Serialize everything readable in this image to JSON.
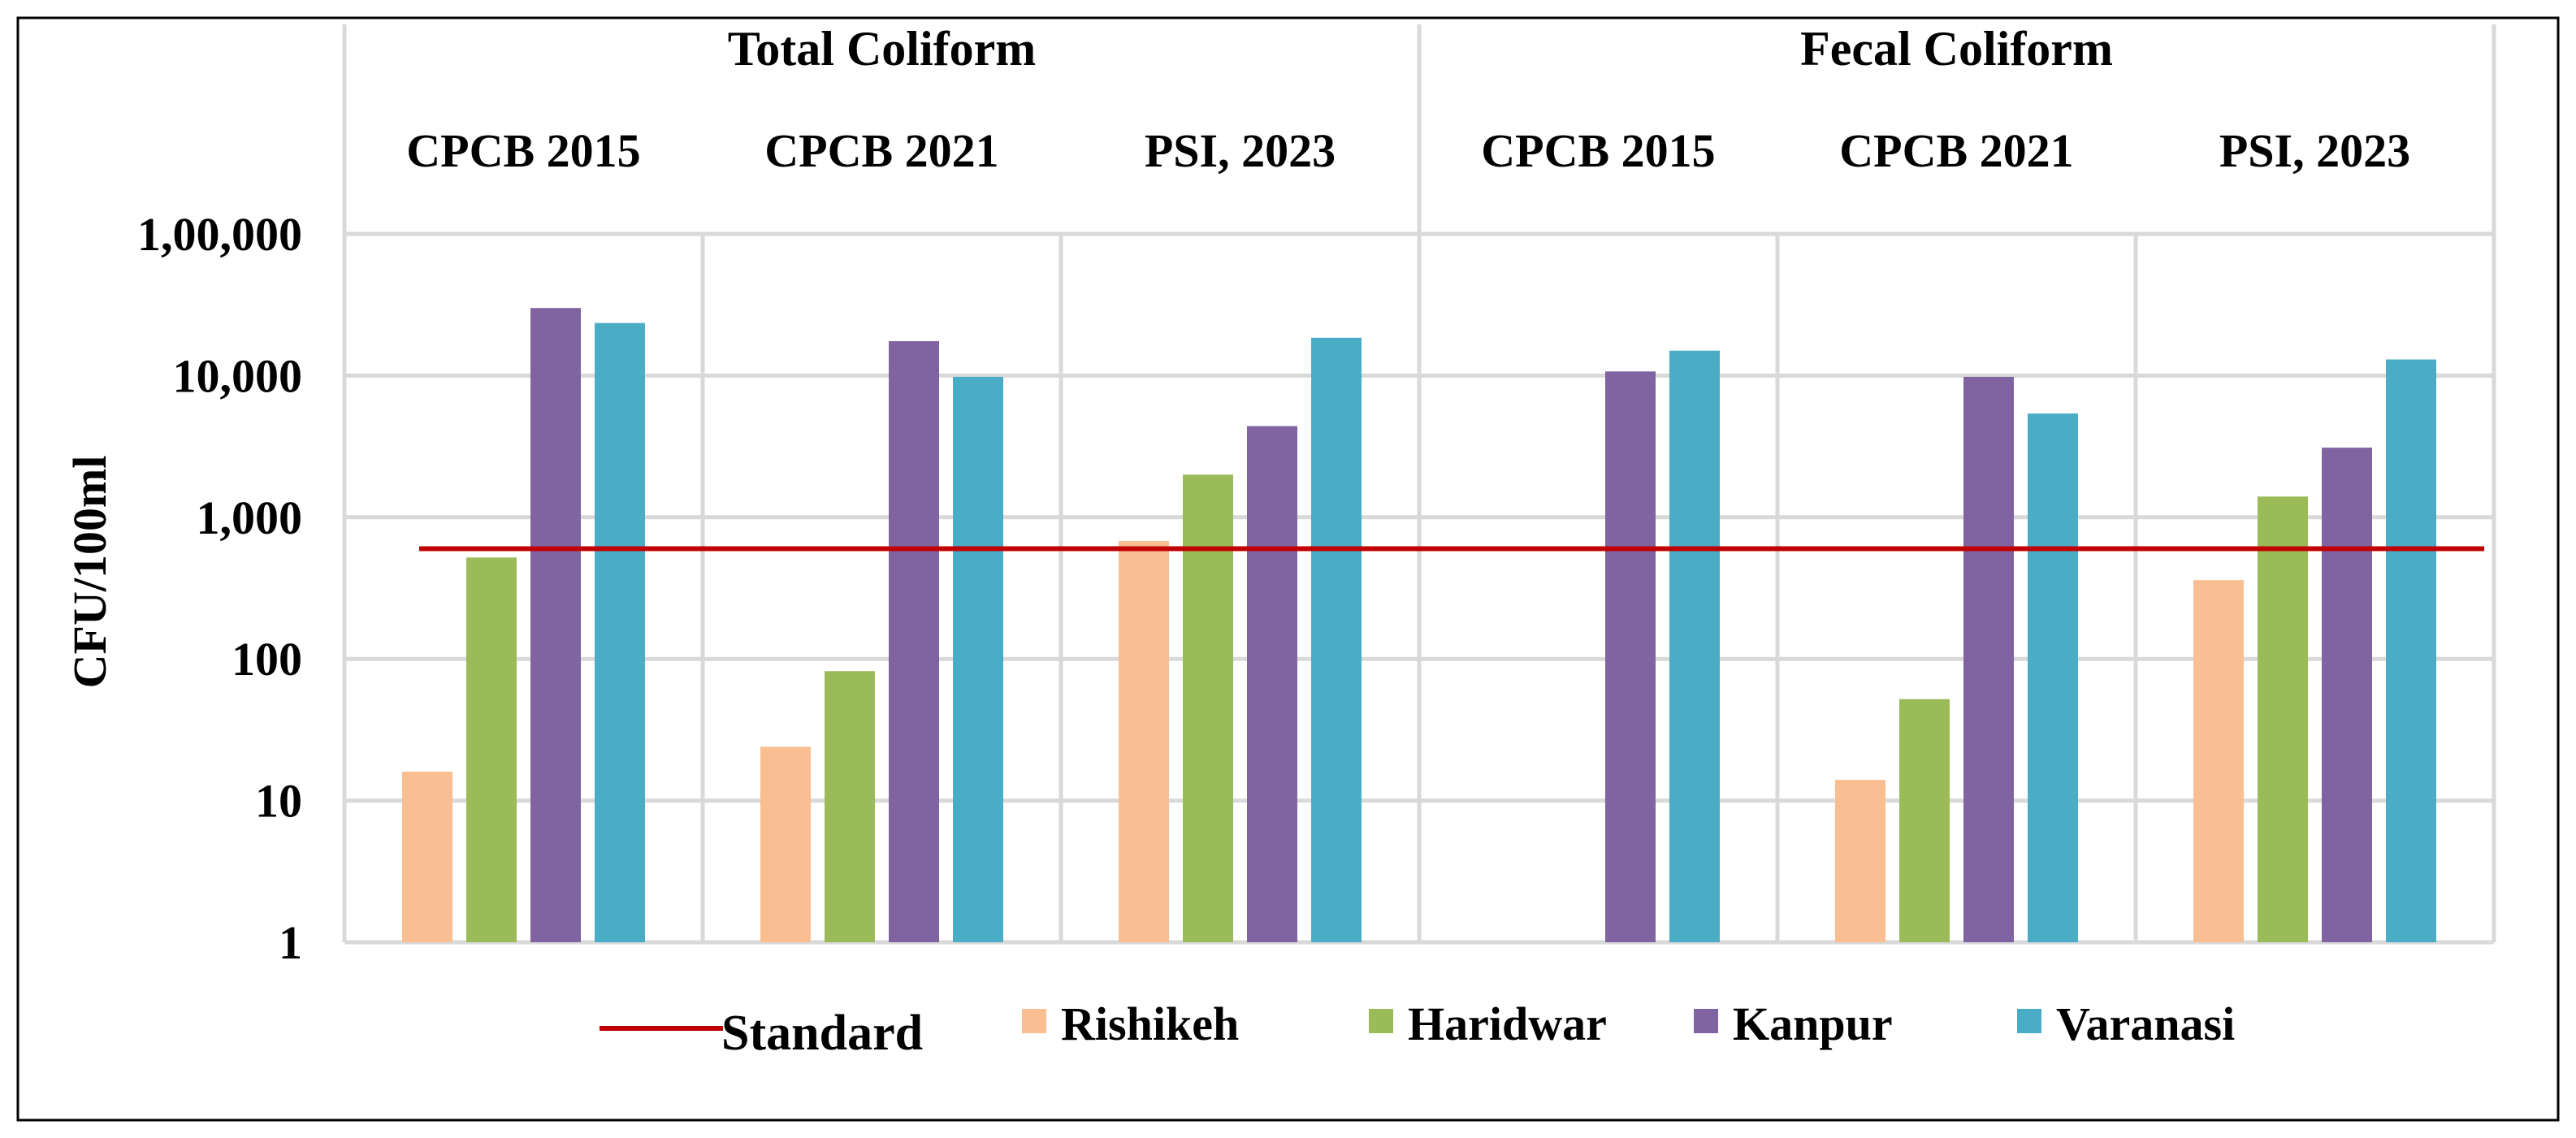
{
  "chart_data": {
    "type": "bar",
    "scale": "log",
    "ylabel": "CFU/100ml",
    "ylim": [
      1,
      100000
    ],
    "yticks": [
      "1",
      "10",
      "100",
      "1,000",
      "10,000",
      "1,00,000"
    ],
    "groups": [
      {
        "name": "Total  Coliform",
        "categories": [
          "CPCB 2015",
          "CPCB 2021",
          "PSI, 2023"
        ]
      },
      {
        "name": "Fecal Coliform",
        "categories": [
          "CPCB 2015",
          "CPCB 2021",
          "PSI, 2023"
        ]
      }
    ],
    "series": [
      {
        "name": "Rishikeh",
        "color": "#F9BE92",
        "values": [
          16,
          24,
          680,
          null,
          14,
          360
        ]
      },
      {
        "name": "Haridwar",
        "color": "#9BBB59",
        "values": [
          520,
          82,
          2000,
          null,
          52,
          1400
        ]
      },
      {
        "name": "Kanpur",
        "color": "#8064A2",
        "values": [
          30000,
          17500,
          4400,
          10700,
          9800,
          3100
        ]
      },
      {
        "name": "Varanasi",
        "color": "#4BACC6",
        "values": [
          23500,
          9800,
          18500,
          15000,
          5400,
          13000
        ]
      }
    ],
    "standard": {
      "name": "Standard",
      "value": 600,
      "color": "#C00000"
    },
    "legend": {
      "position": "bottom"
    }
  }
}
